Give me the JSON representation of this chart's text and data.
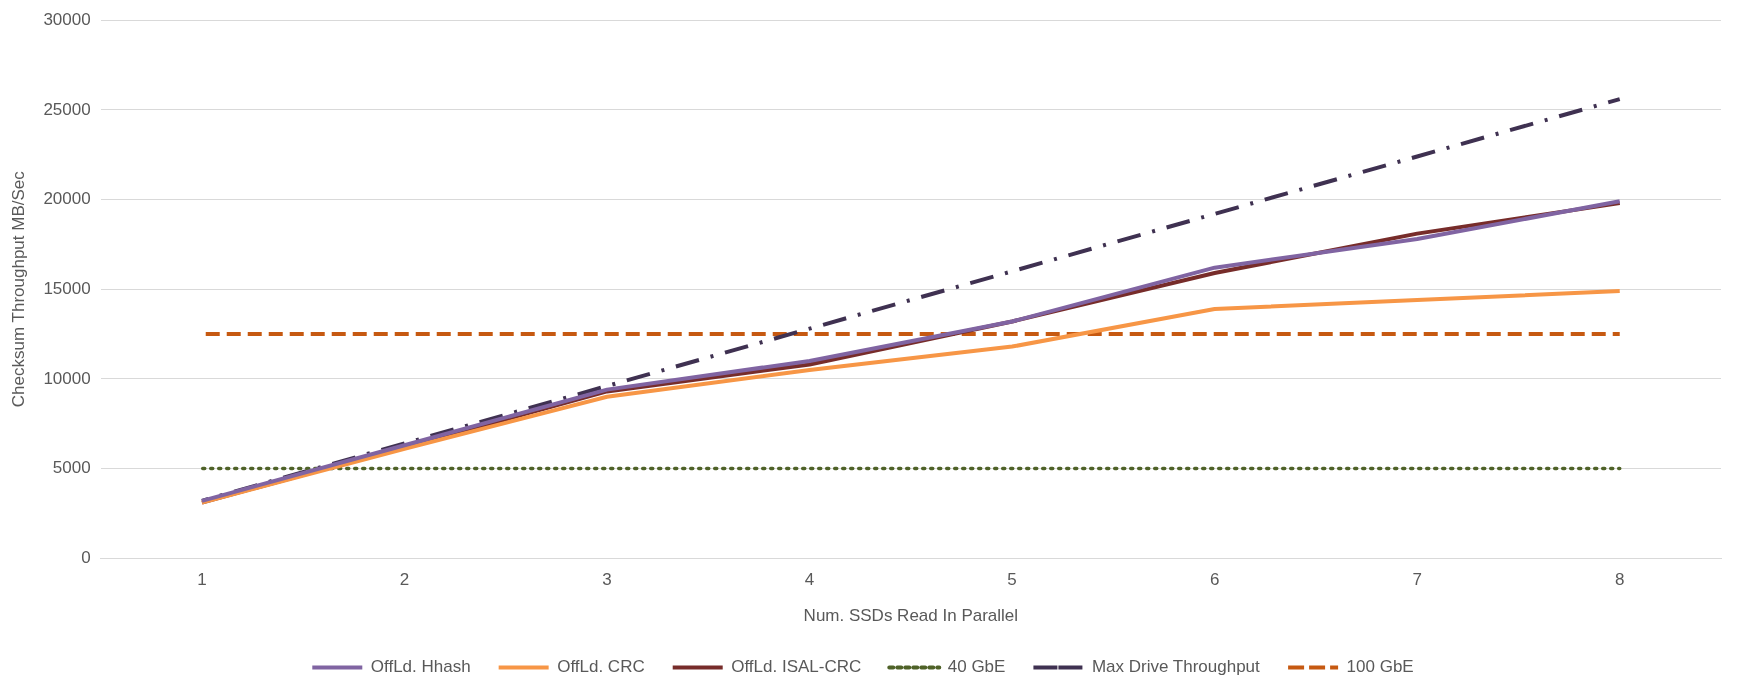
{
  "chart_data": {
    "type": "line",
    "xlabel": "Num. SSDs Read In Parallel",
    "ylabel": "Checksum Throughput MB/Sec",
    "categories": [
      "1",
      "2",
      "3",
      "4",
      "5",
      "6",
      "7",
      "8"
    ],
    "ylim": [
      0,
      30000
    ],
    "yticks": [
      0,
      5000,
      10000,
      15000,
      20000,
      25000,
      30000
    ],
    "grid": "y",
    "legend": "bottom",
    "marker": "none",
    "series": [
      {
        "name": "OffLd. Hhash",
        "color": "#8064a2",
        "line_style": "solid",
        "values": [
          3200,
          6300,
          9400,
          11000,
          13200,
          16200,
          17800,
          19900
        ]
      },
      {
        "name": "OffLd. CRC",
        "color": "#f79646",
        "line_style": "solid",
        "values": [
          3100,
          6100,
          9000,
          10500,
          11800,
          13900,
          14400,
          14900
        ]
      },
      {
        "name": "OffLd. ISAL-CRC",
        "color": "#772c2a",
        "line_style": "solid",
        "values": [
          3100,
          6200,
          9300,
          10800,
          13200,
          15900,
          18100,
          19800
        ]
      },
      {
        "name": "40 GbE",
        "color": "#4f6228",
        "line_style": "dotted",
        "values": [
          5000,
          5000,
          5000,
          5000,
          5000,
          5000,
          5000,
          5000
        ]
      },
      {
        "name": "Max Drive Throughput",
        "color": "#3f3151",
        "line_style": "dashdot",
        "values": [
          3200,
          6400,
          9600,
          12800,
          16000,
          19200,
          22400,
          25600
        ]
      },
      {
        "name": "100 GbE",
        "color": "#c65911",
        "line_style": "dashed",
        "values": [
          12500,
          12500,
          12500,
          12500,
          12500,
          12500,
          12500,
          12500
        ]
      }
    ]
  }
}
